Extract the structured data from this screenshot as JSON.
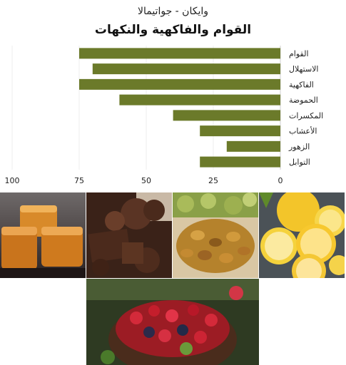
{
  "header": {
    "subtitle": "وايكان - جواتيمالا",
    "title": "القوام والفاكهية والنكهات"
  },
  "chart_data": {
    "type": "bar",
    "orientation": "horizontal",
    "x_direction": "reversed",
    "categories": [
      "القوام",
      "الاستهلال",
      "الفاكهية",
      "الحموضة",
      "المكسرات",
      "الأعشاب",
      "الزهور",
      "التوابل"
    ],
    "values": [
      75,
      70,
      75,
      60,
      40,
      30,
      20,
      30
    ],
    "xlim": [
      0,
      100
    ],
    "xticks": [
      0,
      25,
      50,
      75,
      100
    ],
    "grid": true,
    "bar_color": "#6b7a2a"
  },
  "images": [
    {
      "name": "caramel-image",
      "subject": "caramel"
    },
    {
      "name": "chocolate-image",
      "subject": "chocolate"
    },
    {
      "name": "raisins-image",
      "subject": "raisins and grapes"
    },
    {
      "name": "citrus-image",
      "subject": "lemon and lime"
    },
    {
      "name": "berries-image",
      "subject": "mixed berries"
    }
  ]
}
